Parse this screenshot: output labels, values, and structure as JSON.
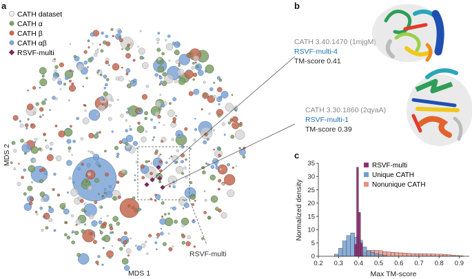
{
  "panels": {
    "a": "a",
    "b": "b",
    "c": "c"
  },
  "scatter_legend": [
    {
      "label": "CATH dataset",
      "fill": "#f2f2f2",
      "stroke": "#aaaaaa",
      "shape": "circle"
    },
    {
      "label": "CATH α",
      "fill": "#7fa06a",
      "stroke": "#5b7d4a",
      "shape": "circle"
    },
    {
      "label": "CATH β",
      "fill": "#c36a52",
      "stroke": "#9b4a36",
      "shape": "circle"
    },
    {
      "label": "CATH αβ",
      "fill": "#7da4d6",
      "stroke": "#5b86bd",
      "shape": "circle"
    },
    {
      "label": "RSVF-multi",
      "fill": "#7a2a5a",
      "stroke": "#5a1a40",
      "shape": "diamond"
    }
  ],
  "mds": {
    "xlabel": "MDS 1",
    "ylabel": "MDS 2",
    "callout": "RSVF-multi"
  },
  "annotations": [
    {
      "cath": "CATH 3.40.1470 (1mjgM)",
      "design": "RSVF-multi-4",
      "score": "TM-score 0.41"
    },
    {
      "cath": "CATH 3.30.1860 (2qyaA)",
      "design": "RSVF-multi-1",
      "score": "TM-score 0.39"
    }
  ],
  "colors": {
    "design": "#1f6fb5",
    "cath_text": "#888888",
    "alpha": "#7fa06a",
    "beta": "#c36a52",
    "ab": "#7da4d6",
    "dataset": "#cfcfcf",
    "rsvf": "#7a2a5a"
  },
  "chart_data": [
    {
      "type": "scatter",
      "title": "",
      "xlabel": "MDS 1",
      "ylabel": "MDS 2",
      "series": [
        {
          "name": "CATH dataset"
        },
        {
          "name": "CATH α"
        },
        {
          "name": "CATH β"
        },
        {
          "name": "CATH αβ"
        },
        {
          "name": "RSVF-multi"
        }
      ],
      "note": "Bubble scatter of CATH fold space embedded by MDS; RSVF-multi designs cluster near the centre."
    },
    {
      "type": "bar",
      "title": "",
      "xlabel": "Max TM-score",
      "ylabel": "Normalized density",
      "xlim": [
        0.2,
        0.95
      ],
      "ylim": [
        0,
        35
      ],
      "xticks": [
        "0.2",
        "0.3",
        "0.4",
        "0.5",
        "0.6",
        "0.7",
        "0.8",
        "0.9"
      ],
      "yticks": [
        "0",
        "5",
        "10",
        "15",
        "20",
        "25",
        "30",
        "35"
      ],
      "series": [
        {
          "name": "RSVF-multi",
          "color": "#8e2f73",
          "bins": [
            [
              0.38,
              0.39,
              4.5
            ],
            [
              0.39,
              0.4,
              33.5
            ],
            [
              0.4,
              0.41,
              16.5
            ],
            [
              0.41,
              0.42,
              5.0
            ]
          ]
        },
        {
          "name": "Unique CATH",
          "color": "#6f9ccf",
          "bins": [
            [
              0.28,
              0.3,
              0.8
            ],
            [
              0.3,
              0.32,
              3.0
            ],
            [
              0.32,
              0.34,
              5.8
            ],
            [
              0.34,
              0.36,
              7.8
            ],
            [
              0.36,
              0.38,
              8.8
            ],
            [
              0.38,
              0.4,
              7.2
            ],
            [
              0.4,
              0.42,
              6.0
            ],
            [
              0.42,
              0.44,
              3.5
            ],
            [
              0.44,
              0.46,
              2.2
            ],
            [
              0.46,
              0.48,
              1.5
            ],
            [
              0.48,
              0.5,
              1.0
            ],
            [
              0.5,
              0.52,
              0.6
            ],
            [
              0.52,
              0.54,
              0.3
            ]
          ]
        },
        {
          "name": "Nonunique CATH",
          "color": "#e8917f",
          "bins": [
            [
              0.4,
              0.42,
              0.8
            ],
            [
              0.42,
              0.44,
              1.5
            ],
            [
              0.44,
              0.46,
              2.0
            ],
            [
              0.46,
              0.48,
              2.3
            ],
            [
              0.48,
              0.5,
              2.2
            ],
            [
              0.5,
              0.52,
              2.1
            ],
            [
              0.52,
              0.54,
              1.8
            ],
            [
              0.54,
              0.56,
              1.6
            ],
            [
              0.56,
              0.58,
              1.5
            ],
            [
              0.58,
              0.6,
              1.4
            ],
            [
              0.6,
              0.62,
              1.3
            ],
            [
              0.62,
              0.64,
              1.2
            ],
            [
              0.64,
              0.66,
              1.1
            ],
            [
              0.66,
              0.68,
              1.0
            ],
            [
              0.68,
              0.7,
              1.0
            ],
            [
              0.7,
              0.72,
              1.0
            ],
            [
              0.72,
              0.74,
              1.0
            ],
            [
              0.74,
              0.76,
              0.9
            ],
            [
              0.76,
              0.78,
              0.9
            ],
            [
              0.78,
              0.8,
              0.8
            ],
            [
              0.8,
              0.82,
              0.8
            ],
            [
              0.82,
              0.84,
              0.7
            ],
            [
              0.84,
              0.86,
              0.6
            ],
            [
              0.86,
              0.88,
              0.4
            ],
            [
              0.88,
              0.9,
              0.3
            ],
            [
              0.9,
              0.92,
              0.2
            ]
          ]
        }
      ]
    }
  ]
}
